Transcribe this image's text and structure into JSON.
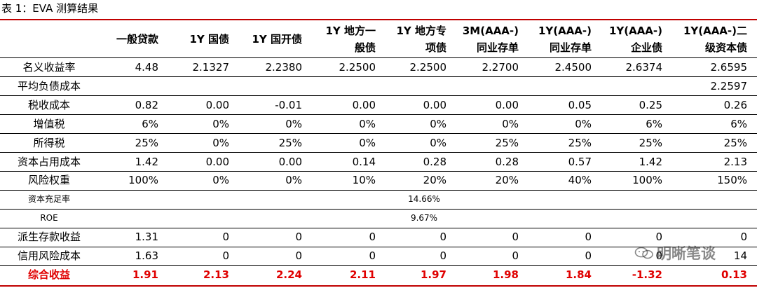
{
  "caption": "表 1：EVA 测算结果",
  "headers": [
    [
      "一般贷款"
    ],
    [
      "1Y 国债"
    ],
    [
      "1Y 国开债"
    ],
    [
      "1Y 地方一",
      "般债"
    ],
    [
      "1Y 地方专",
      "项债"
    ],
    [
      "3M(AAA-)",
      "同业存单"
    ],
    [
      "1Y(AAA-)",
      "同业存单"
    ],
    [
      "1Y(AAA-)",
      "企业债"
    ],
    [
      "1Y(AAA-)二",
      "级资本债"
    ]
  ],
  "rows": [
    {
      "label": "名义收益率",
      "values": [
        "4.48",
        "2.1327",
        "2.2380",
        "2.2500",
        "2.2500",
        "2.2700",
        "2.4500",
        "2.6374",
        "2.6595"
      ]
    },
    {
      "label": "平均负债成本",
      "values": [
        "",
        "",
        "",
        "",
        "",
        "",
        "",
        "",
        "2.2597"
      ]
    },
    {
      "label": "税收成本",
      "values": [
        "0.82",
        "0.00",
        "-0.01",
        "0.00",
        "0.00",
        "0.00",
        "0.05",
        "0.25",
        "0.26"
      ]
    },
    {
      "label": "增值税",
      "values": [
        "6%",
        "0%",
        "0%",
        "0%",
        "0%",
        "0%",
        "0%",
        "6%",
        "6%"
      ]
    },
    {
      "label": "所得税",
      "values": [
        "25%",
        "0%",
        "25%",
        "0%",
        "0%",
        "25%",
        "25%",
        "25%",
        "25%"
      ]
    },
    {
      "label": "资本占用成本",
      "values": [
        "1.42",
        "0.00",
        "0.00",
        "0.14",
        "0.28",
        "0.28",
        "0.57",
        "1.42",
        "2.13"
      ]
    },
    {
      "label": "风险权重",
      "values": [
        "100%",
        "0%",
        "0%",
        "10%",
        "20%",
        "20%",
        "40%",
        "100%",
        "150%"
      ]
    },
    {
      "label": "资本充足率",
      "span": "14.66%"
    },
    {
      "label": "ROE",
      "span": "9.67%"
    },
    {
      "label": "派生存款收益",
      "values": [
        "1.31",
        "0",
        "0",
        "0",
        "0",
        "0",
        "0",
        "0",
        "0"
      ]
    },
    {
      "label": "信用风险成本",
      "values": [
        "1.63",
        "0",
        "0",
        "0",
        "0",
        "0",
        "0",
        "0",
        "14"
      ]
    },
    {
      "label": "综合收益",
      "values": [
        "1.91",
        "2.13",
        "2.24",
        "2.11",
        "1.97",
        "1.98",
        "1.84",
        "-1.32",
        "0.13"
      ]
    }
  ],
  "watermark": "明晰笔谈",
  "colors": {
    "accent": "#e00000",
    "rule": "#c00000",
    "text": "#000000"
  }
}
